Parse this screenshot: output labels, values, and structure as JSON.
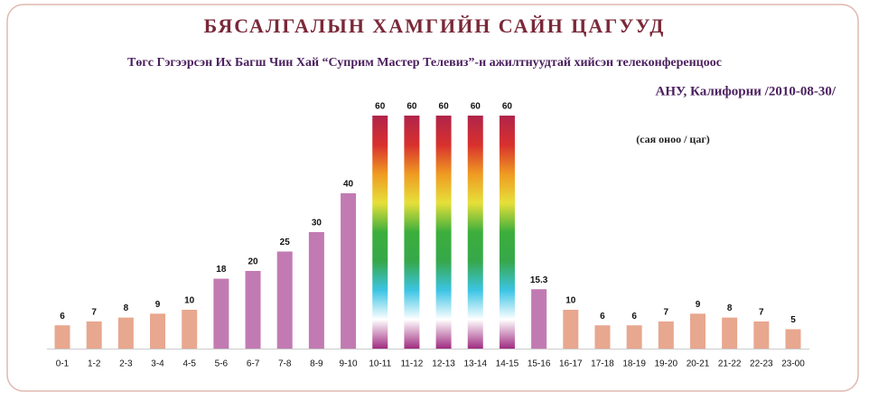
{
  "chart_data": {
    "type": "bar",
    "title": "БЯСАЛГАЛЫН ХАМГИЙН САЙН ЦАГУУД",
    "subtitle": "Төгс Гэгээрсэн Их Багш Чин Хай “Суприм Мастер Телевиз”-н ажилтнуудтай хийсэн телеконференцоос",
    "source": "АНУ, Калифорни /2010-08-30/",
    "unit": "(сая оноо / цаг)",
    "categories": [
      "0-1",
      "1-2",
      "2-3",
      "3-4",
      "4-5",
      "5-6",
      "6-7",
      "7-8",
      "8-9",
      "9-10",
      "10-11",
      "11-12",
      "12-13",
      "13-14",
      "14-15",
      "15-16",
      "16-17",
      "17-18",
      "18-19",
      "19-20",
      "20-21",
      "21-22",
      "22-23",
      "23-00"
    ],
    "values": [
      6,
      7,
      8,
      9,
      10,
      18,
      20,
      25,
      30,
      40,
      60,
      60,
      60,
      60,
      60,
      15.3,
      10,
      6,
      6,
      7,
      9,
      8,
      7,
      5
    ],
    "colors": [
      "#e8a78f",
      "#e8a78f",
      "#e8a78f",
      "#e8a78f",
      "#e8a78f",
      "#c27bb2",
      "#c27bb2",
      "#c27bb2",
      "#c27bb2",
      "#c27bb2",
      "gradient",
      "gradient",
      "gradient",
      "gradient",
      "gradient",
      "#c27bb2",
      "#e8a78f",
      "#e8a78f",
      "#e8a78f",
      "#e8a78f",
      "#e8a78f",
      "#e8a78f",
      "#e8a78f",
      "#e8a78f"
    ],
    "gradient": [
      "#b0244a",
      "#d8302e",
      "#ef9a22",
      "#e6e03a",
      "#3cae3c",
      "#36a84a",
      "#3cc4e4",
      "#ffffff",
      "#a02c80"
    ]
  }
}
